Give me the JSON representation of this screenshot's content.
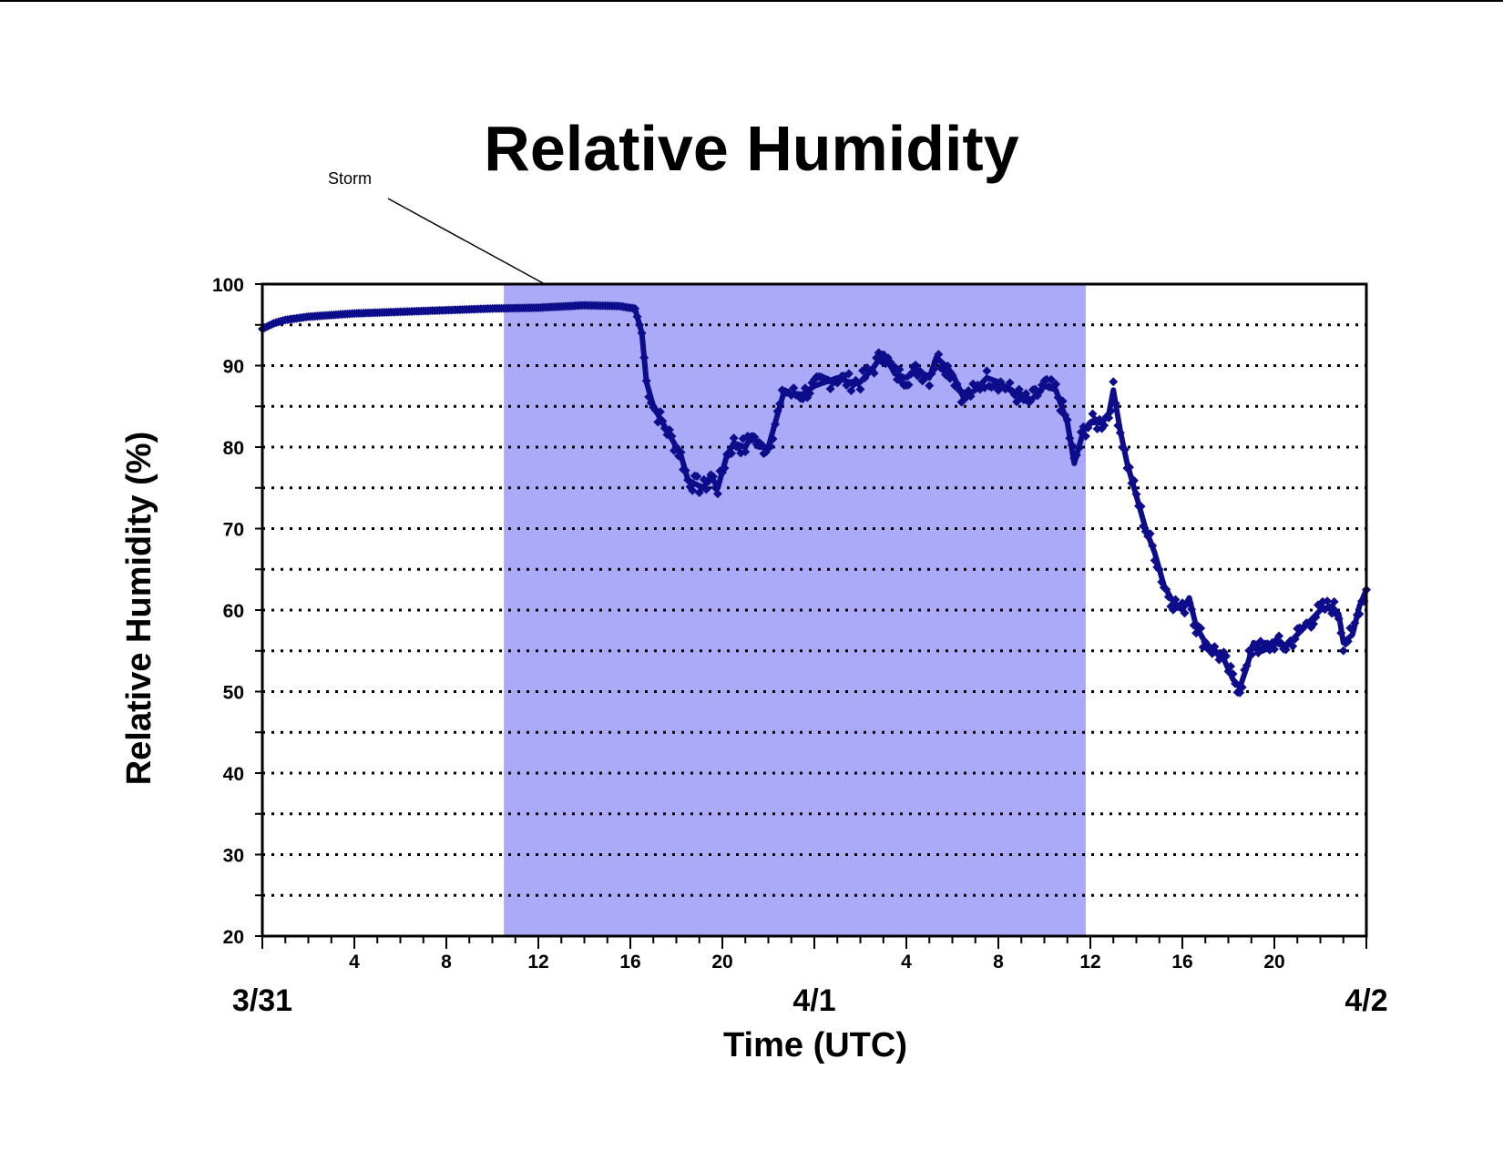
{
  "chart_data": {
    "type": "scatter",
    "title": "Relative Humidity",
    "xlabel": "Time (UTC)",
    "ylabel": "Relative Humidity (%)",
    "ylim": [
      20,
      100
    ],
    "xlim_hours": [
      0,
      48
    ],
    "x_unit": "hours since 3/31 00 UTC",
    "y_ticks": [
      "20",
      "30",
      "40",
      "50",
      "60",
      "70",
      "80",
      "90",
      "100"
    ],
    "x_ticks": [
      {
        "hour": 4,
        "label": "4"
      },
      {
        "hour": 8,
        "label": "8"
      },
      {
        "hour": 12,
        "label": "12"
      },
      {
        "hour": 16,
        "label": "16"
      },
      {
        "hour": 20,
        "label": "20"
      },
      {
        "hour": 28,
        "label": "4"
      },
      {
        "hour": 32,
        "label": "8"
      },
      {
        "hour": 36,
        "label": "12"
      },
      {
        "hour": 40,
        "label": "16"
      },
      {
        "hour": 44,
        "label": "20"
      }
    ],
    "date_labels": [
      {
        "hour": 0,
        "label": "3/31"
      },
      {
        "hour": 24,
        "label": "4/1"
      },
      {
        "hour": 48,
        "label": "4/2"
      }
    ],
    "grid": "dotted horizontal every 5",
    "legend": "none",
    "series_color": "#0d0d8c",
    "shaded_region": {
      "start_hour": 10.5,
      "end_hour": 35.8,
      "color": "#aaaaf8"
    },
    "annotation": {
      "text": "Storm"
    },
    "points": [
      [
        0,
        94.5
      ],
      [
        0.5,
        95.2
      ],
      [
        1,
        95.6
      ],
      [
        2,
        96.0
      ],
      [
        3,
        96.2
      ],
      [
        4,
        96.4
      ],
      [
        6,
        96.6
      ],
      [
        8,
        96.8
      ],
      [
        10,
        97.0
      ],
      [
        12,
        97.1
      ],
      [
        14,
        97.4
      ],
      [
        15.5,
        97.3
      ],
      [
        16.2,
        97.0
      ],
      [
        16.5,
        94.0
      ],
      [
        16.7,
        88.0
      ],
      [
        17,
        85.0
      ],
      [
        17.4,
        83.0
      ],
      [
        17.8,
        81.0
      ],
      [
        18.2,
        79.0
      ],
      [
        18.5,
        76.0
      ],
      [
        18.8,
        75.5
      ],
      [
        19.2,
        75.0
      ],
      [
        19.5,
        76.5
      ],
      [
        19.8,
        75.0
      ],
      [
        20.2,
        79.0
      ],
      [
        20.5,
        80.5
      ],
      [
        21.0,
        80.0
      ],
      [
        21.3,
        81.5
      ],
      [
        21.6,
        80.0
      ],
      [
        22.0,
        80.0
      ],
      [
        22.3,
        83.0
      ],
      [
        22.7,
        87.0
      ],
      [
        23.0,
        86.5
      ],
      [
        23.5,
        86.5
      ],
      [
        24.0,
        87.5
      ],
      [
        24.5,
        88.0
      ],
      [
        25.0,
        88.5
      ],
      [
        25.5,
        88.0
      ],
      [
        26.0,
        88.0
      ],
      [
        26.5,
        89.5
      ],
      [
        27.0,
        91.5
      ],
      [
        27.5,
        89.0
      ],
      [
        28.0,
        88.5
      ],
      [
        28.5,
        89.5
      ],
      [
        29.0,
        88.5
      ],
      [
        29.3,
        91.0
      ],
      [
        29.7,
        90.0
      ],
      [
        30.0,
        89.0
      ],
      [
        30.5,
        86.0
      ],
      [
        31.0,
        87.0
      ],
      [
        31.5,
        88.5
      ],
      [
        32.0,
        88.0
      ],
      [
        32.5,
        87.0
      ],
      [
        33.0,
        86.0
      ],
      [
        33.3,
        85.5
      ],
      [
        33.7,
        86.5
      ],
      [
        34.0,
        87.5
      ],
      [
        34.5,
        87.0
      ],
      [
        35.0,
        83.0
      ],
      [
        35.3,
        78.0
      ],
      [
        35.7,
        82.0
      ],
      [
        36.0,
        83.0
      ],
      [
        36.5,
        83.0
      ],
      [
        36.8,
        84.0
      ],
      [
        37.0,
        87.0
      ],
      [
        37.3,
        82.0
      ],
      [
        37.6,
        78.0
      ],
      [
        38.0,
        74.0
      ],
      [
        38.4,
        70.0
      ],
      [
        38.8,
        67.0
      ],
      [
        39.2,
        63.0
      ],
      [
        39.6,
        61.0
      ],
      [
        40.0,
        60.0
      ],
      [
        40.3,
        61.5
      ],
      [
        40.6,
        58.0
      ],
      [
        41.0,
        56.0
      ],
      [
        41.4,
        55.0
      ],
      [
        41.8,
        54.0
      ],
      [
        42.2,
        51.5
      ],
      [
        42.5,
        50.5
      ],
      [
        42.8,
        53.0
      ],
      [
        43.1,
        56.0
      ],
      [
        43.5,
        55.0
      ],
      [
        44.0,
        56.0
      ],
      [
        44.5,
        55.5
      ],
      [
        45.0,
        57.0
      ],
      [
        45.5,
        58.5
      ],
      [
        46.0,
        60.0
      ],
      [
        46.5,
        60.5
      ],
      [
        46.8,
        59.5
      ],
      [
        47.0,
        56.0
      ],
      [
        47.4,
        57.0
      ],
      [
        47.7,
        60.5
      ],
      [
        48.0,
        62.5
      ]
    ]
  }
}
